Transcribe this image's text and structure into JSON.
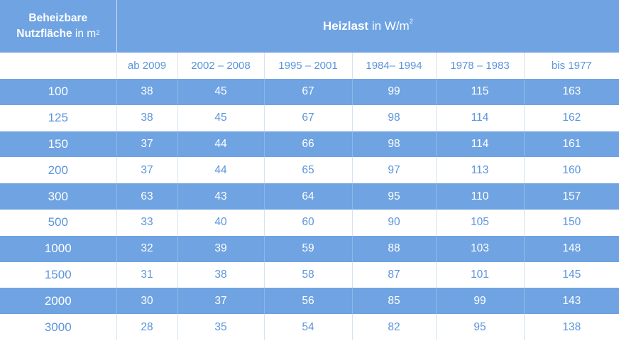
{
  "header": {
    "col1_line1": "Beheizbare",
    "col1_line2_bold": "Nutzfläche",
    "col1_line2_rest": " in m",
    "col1_sup": "2",
    "span_bold": "Heizlast",
    "span_rest": " in W/m",
    "span_sup": "2"
  },
  "columns": [
    "ab 2009",
    "2002 – 2008",
    "1995 – 2001",
    "1984– 1994",
    "1978 – 1983",
    "bis 1977"
  ],
  "rows": [
    {
      "area": "100",
      "values": [
        "38",
        "45",
        "67",
        "99",
        "115",
        "163"
      ]
    },
    {
      "area": "125",
      "values": [
        "38",
        "45",
        "67",
        "98",
        "114",
        "162"
      ]
    },
    {
      "area": "150",
      "values": [
        "37",
        "44",
        "66",
        "98",
        "114",
        "161"
      ]
    },
    {
      "area": "200",
      "values": [
        "37",
        "44",
        "65",
        "97",
        "113",
        "160"
      ]
    },
    {
      "area": "300",
      "values": [
        "63",
        "43",
        "64",
        "95",
        "110",
        "157"
      ]
    },
    {
      "area": "500",
      "values": [
        "33",
        "40",
        "60",
        "90",
        "105",
        "150"
      ]
    },
    {
      "area": "1000",
      "values": [
        "32",
        "39",
        "59",
        "88",
        "103",
        "148"
      ]
    },
    {
      "area": "1500",
      "values": [
        "31",
        "38",
        "58",
        "87",
        "101",
        "145"
      ]
    },
    {
      "area": "2000",
      "values": [
        "30",
        "37",
        "56",
        "85",
        "99",
        "143"
      ]
    },
    {
      "area": "3000",
      "values": [
        "28",
        "35",
        "54",
        "82",
        "95",
        "138"
      ]
    }
  ],
  "colors": {
    "accent": "#6fa3e2",
    "text_blue": "#5b95db",
    "white": "#ffffff"
  }
}
